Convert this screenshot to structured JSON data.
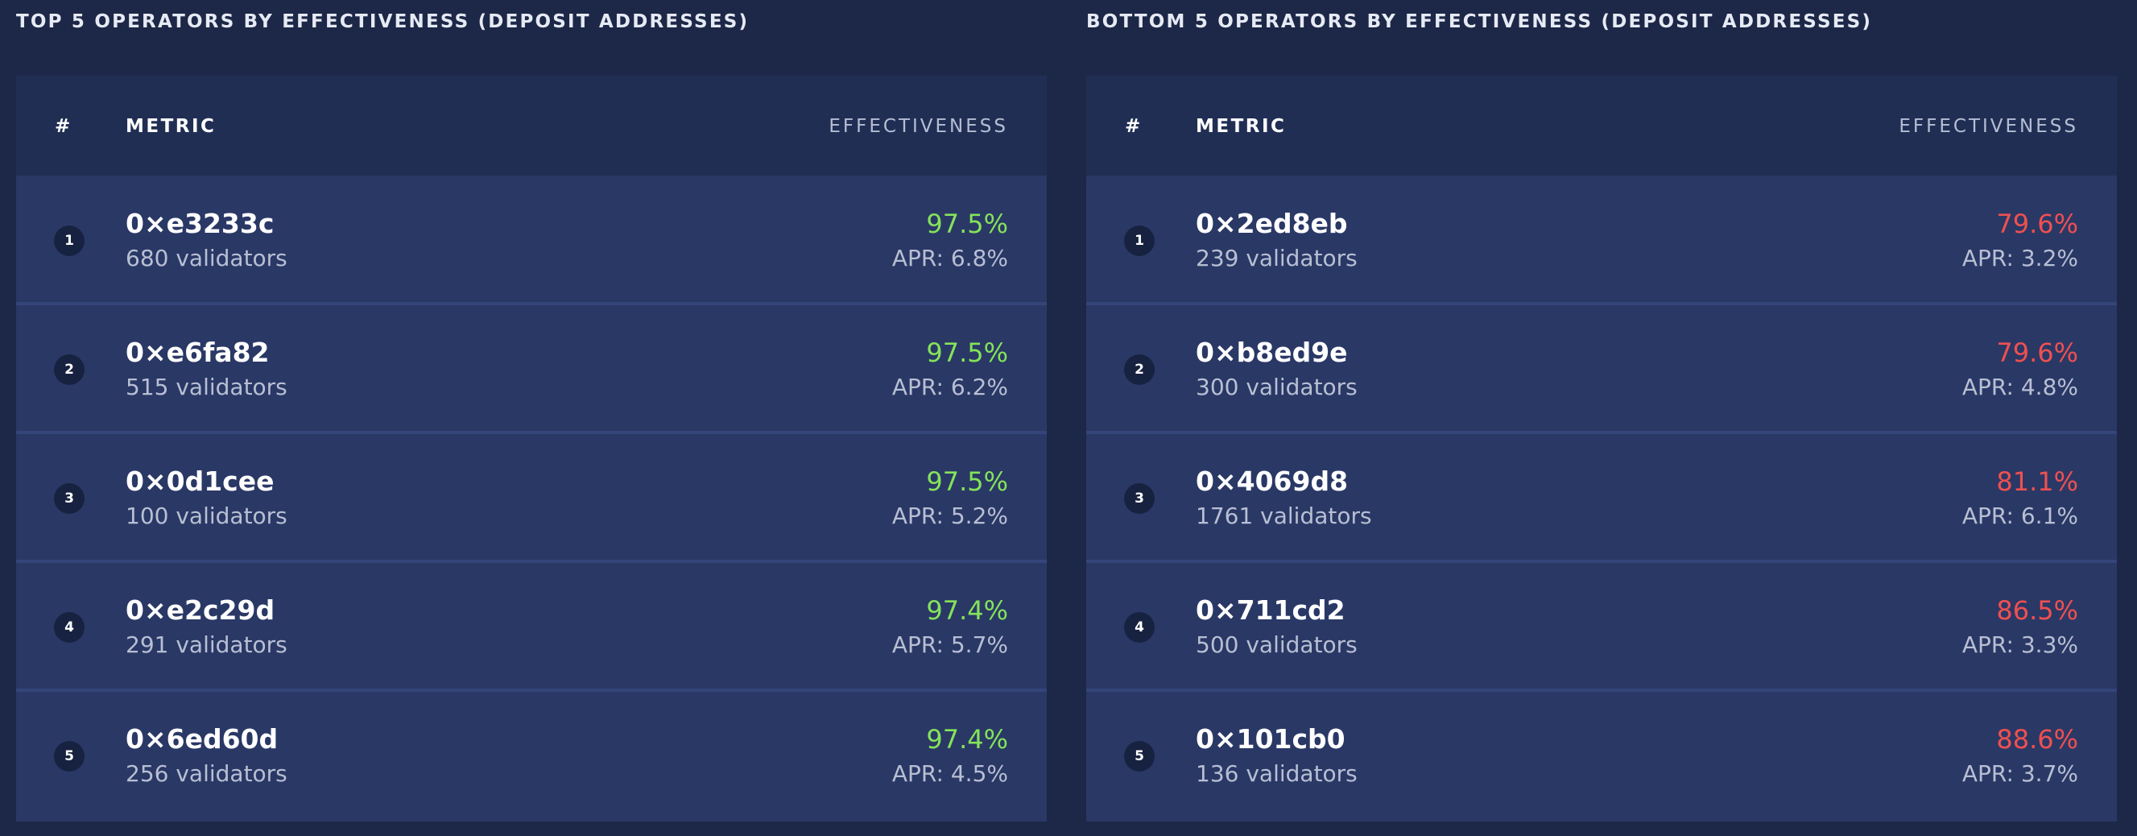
{
  "colors": {
    "background": "#1d2747",
    "table_body": "#2a3866",
    "table_header": "#212e54",
    "good_effectiveness": "#84e35a",
    "bad_effectiveness": "#ef5050",
    "muted_text": "#b8bfd3"
  },
  "top": {
    "title": "TOP 5 OPERATORS BY EFFECTIVENESS (DEPOSIT ADDRESSES)",
    "columns": {
      "rank": "#",
      "metric": "METRIC",
      "effectiveness": "EFFECTIVENESS"
    },
    "rows": [
      {
        "rank": "1",
        "address": "0×e3233c",
        "validators": "680 validators",
        "effectiveness": "97.5%",
        "apr": "APR: 6.8%"
      },
      {
        "rank": "2",
        "address": "0×e6fa82",
        "validators": "515 validators",
        "effectiveness": "97.5%",
        "apr": "APR: 6.2%"
      },
      {
        "rank": "3",
        "address": "0×0d1cee",
        "validators": "100 validators",
        "effectiveness": "97.5%",
        "apr": "APR: 5.2%"
      },
      {
        "rank": "4",
        "address": "0×e2c29d",
        "validators": "291 validators",
        "effectiveness": "97.4%",
        "apr": "APR: 5.7%"
      },
      {
        "rank": "5",
        "address": "0×6ed60d",
        "validators": "256 validators",
        "effectiveness": "97.4%",
        "apr": "APR: 4.5%"
      }
    ]
  },
  "bottom": {
    "title": "BOTTOM 5 OPERATORS BY EFFECTIVENESS (DEPOSIT ADDRESSES)",
    "columns": {
      "rank": "#",
      "metric": "METRIC",
      "effectiveness": "EFFECTIVENESS"
    },
    "rows": [
      {
        "rank": "1",
        "address": "0×2ed8eb",
        "validators": "239 validators",
        "effectiveness": "79.6%",
        "apr": "APR: 3.2%"
      },
      {
        "rank": "2",
        "address": "0×b8ed9e",
        "validators": "300 validators",
        "effectiveness": "79.6%",
        "apr": "APR: 4.8%"
      },
      {
        "rank": "3",
        "address": "0×4069d8",
        "validators": "1761 validators",
        "effectiveness": "81.1%",
        "apr": "APR: 6.1%"
      },
      {
        "rank": "4",
        "address": "0×711cd2",
        "validators": "500 validators",
        "effectiveness": "86.5%",
        "apr": "APR: 3.3%"
      },
      {
        "rank": "5",
        "address": "0×101cb0",
        "validators": "136 validators",
        "effectiveness": "88.6%",
        "apr": "APR: 3.7%"
      }
    ]
  }
}
